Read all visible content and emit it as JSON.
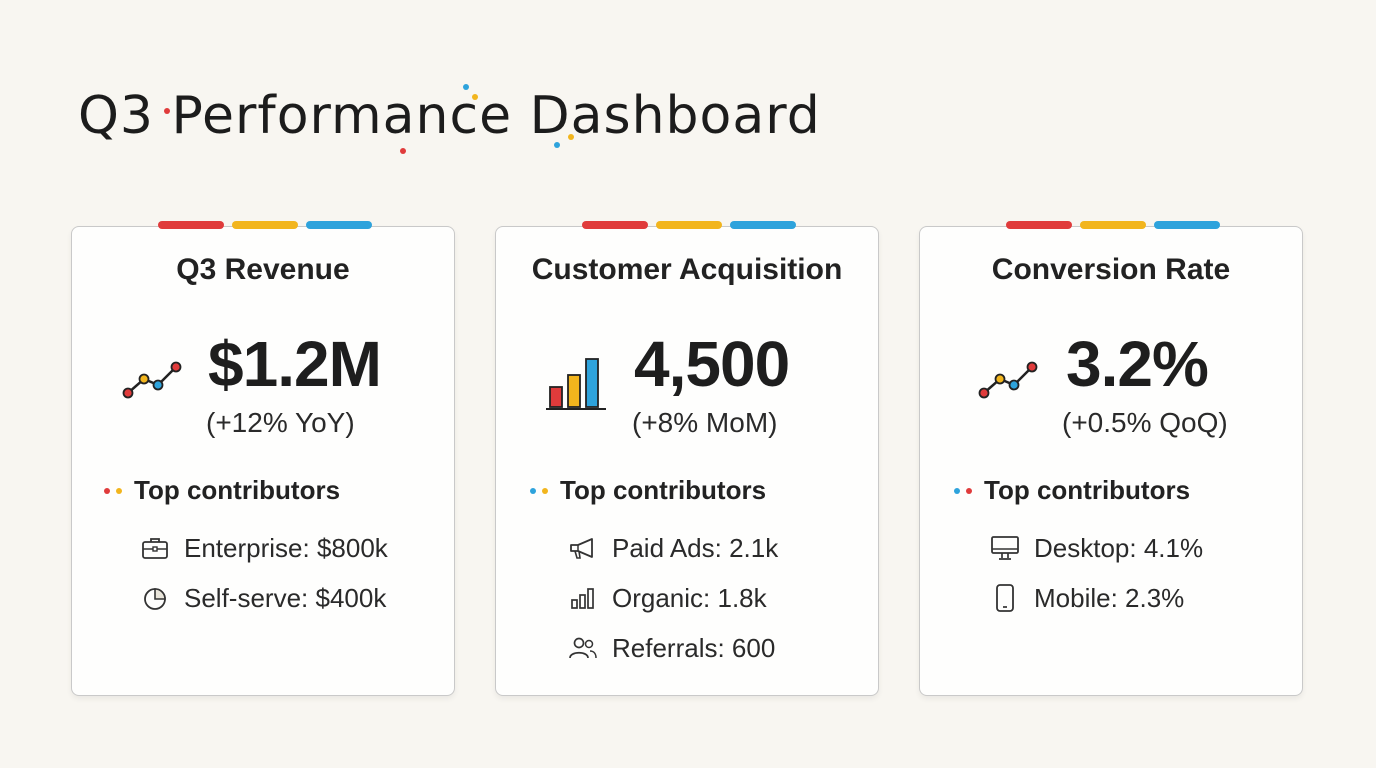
{
  "title": "Q3 Performance Dashboard",
  "colors": {
    "red": "#e03b3b",
    "yellow": "#f2b51d",
    "blue": "#2ea3dc",
    "background": "#f8f6f1"
  },
  "cards": [
    {
      "title": "Q3 Revenue",
      "icon": "line-trend-icon",
      "value": "$1.2M",
      "change": "(+12% YoY)",
      "contributors_label": "Top contributors",
      "contributors": [
        {
          "icon": "briefcase-icon",
          "text": "Enterprise: $800k"
        },
        {
          "icon": "pie-chart-icon",
          "text": "Self-serve: $400k"
        }
      ]
    },
    {
      "title": "Customer Acquisition",
      "icon": "bar-chart-icon",
      "value": "4,500",
      "change": "(+8% MoM)",
      "contributors_label": "Top contributors",
      "contributors": [
        {
          "icon": "megaphone-icon",
          "text": "Paid Ads: 2.1k"
        },
        {
          "icon": "bar-chart-small-icon",
          "text": "Organic: 1.8k"
        },
        {
          "icon": "users-icon",
          "text": "Referrals: 600"
        }
      ]
    },
    {
      "title": "Conversion Rate",
      "icon": "line-trend-icon",
      "value": "3.2%",
      "change": "(+0.5% QoQ)",
      "contributors_label": "Top contributors",
      "contributors": [
        {
          "icon": "desktop-icon",
          "text": "Desktop: 4.1%"
        },
        {
          "icon": "mobile-icon",
          "text": "Mobile: 2.3%"
        }
      ]
    }
  ]
}
